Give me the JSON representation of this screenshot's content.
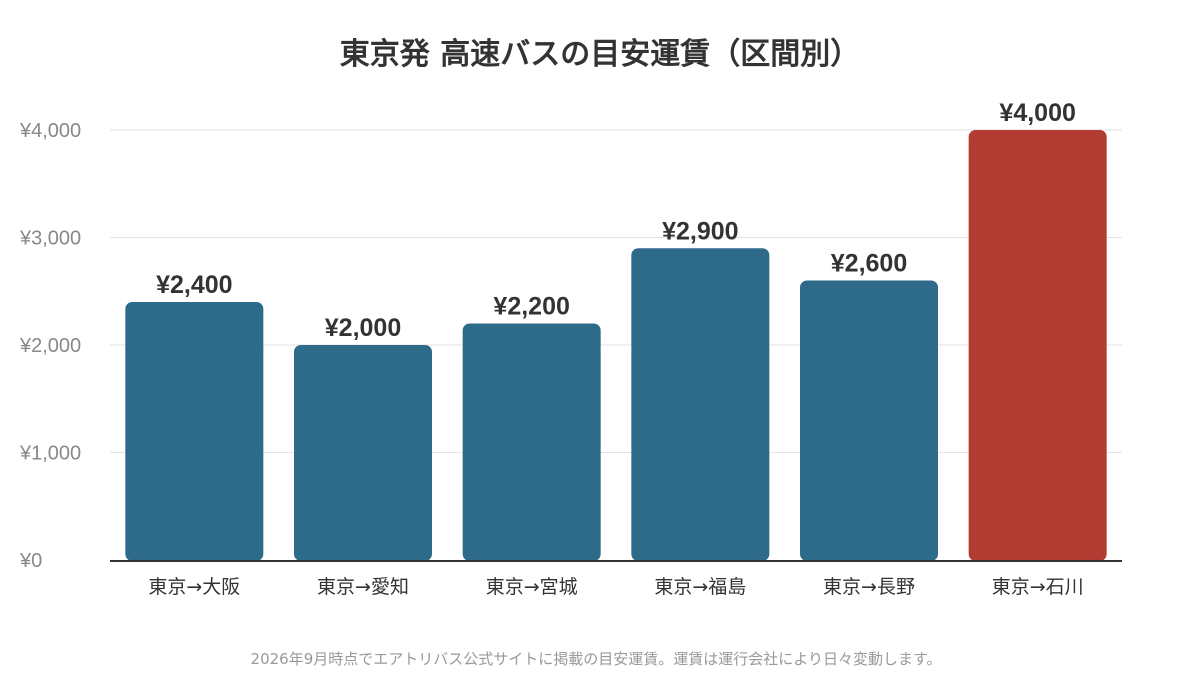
{
  "chart_data": {
    "type": "bar",
    "title": "東京発 高速バスの目安運賃（区間別）",
    "categories": [
      "東京→大阪",
      "東京→愛知",
      "東京→宮城",
      "東京→福島",
      "東京→長野",
      "東京→石川"
    ],
    "values": [
      2400,
      2000,
      2200,
      2900,
      2600,
      4000
    ],
    "data_labels": [
      "¥2,400",
      "¥2,000",
      "¥2,200",
      "¥2,900",
      "¥2,600",
      "¥4,000"
    ],
    "ylim": [
      0,
      4000
    ],
    "yticks": [
      0,
      1000,
      2000,
      3000,
      4000
    ],
    "ytick_labels": [
      "¥0",
      "¥1,000",
      "¥2,000",
      "¥3,000",
      "¥4,000"
    ],
    "grid": true,
    "colors": {
      "bar": "#2e6a8a",
      "highlight": "#b23c32"
    },
    "highlight_index": 5
  },
  "footnote": "2026年9月時点でエアトリバス公式サイトに掲載の目安運賃。運賃は運行会社により日々変動します。"
}
